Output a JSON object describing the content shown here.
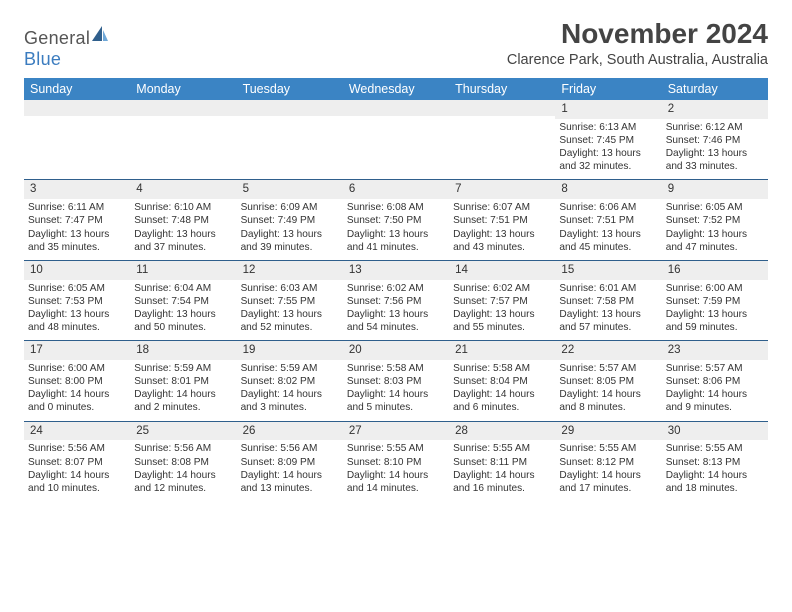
{
  "logo": {
    "word1": "General",
    "word2": "Blue"
  },
  "title": "November 2024",
  "subtitle": "Clarence Park, South Australia, Australia",
  "colors": {
    "header_bg": "#3b84c4",
    "header_text": "#ffffff",
    "daynum_bg": "#eeeeee",
    "rule": "#2f5f8c",
    "text": "#333333",
    "page_bg": "#ffffff"
  },
  "fonts": {
    "title_size_pt": 21,
    "subtitle_size_pt": 11,
    "header_size_pt": 9.5,
    "cell_size_pt": 7.6
  },
  "day_names": [
    "Sunday",
    "Monday",
    "Tuesday",
    "Wednesday",
    "Thursday",
    "Friday",
    "Saturday"
  ],
  "weeks": [
    [
      {
        "n": "",
        "sr": "",
        "ss": "",
        "dl1": "",
        "dl2": ""
      },
      {
        "n": "",
        "sr": "",
        "ss": "",
        "dl1": "",
        "dl2": ""
      },
      {
        "n": "",
        "sr": "",
        "ss": "",
        "dl1": "",
        "dl2": ""
      },
      {
        "n": "",
        "sr": "",
        "ss": "",
        "dl1": "",
        "dl2": ""
      },
      {
        "n": "",
        "sr": "",
        "ss": "",
        "dl1": "",
        "dl2": ""
      },
      {
        "n": "1",
        "sr": "Sunrise: 6:13 AM",
        "ss": "Sunset: 7:45 PM",
        "dl1": "Daylight: 13 hours",
        "dl2": "and 32 minutes."
      },
      {
        "n": "2",
        "sr": "Sunrise: 6:12 AM",
        "ss": "Sunset: 7:46 PM",
        "dl1": "Daylight: 13 hours",
        "dl2": "and 33 minutes."
      }
    ],
    [
      {
        "n": "3",
        "sr": "Sunrise: 6:11 AM",
        "ss": "Sunset: 7:47 PM",
        "dl1": "Daylight: 13 hours",
        "dl2": "and 35 minutes."
      },
      {
        "n": "4",
        "sr": "Sunrise: 6:10 AM",
        "ss": "Sunset: 7:48 PM",
        "dl1": "Daylight: 13 hours",
        "dl2": "and 37 minutes."
      },
      {
        "n": "5",
        "sr": "Sunrise: 6:09 AM",
        "ss": "Sunset: 7:49 PM",
        "dl1": "Daylight: 13 hours",
        "dl2": "and 39 minutes."
      },
      {
        "n": "6",
        "sr": "Sunrise: 6:08 AM",
        "ss": "Sunset: 7:50 PM",
        "dl1": "Daylight: 13 hours",
        "dl2": "and 41 minutes."
      },
      {
        "n": "7",
        "sr": "Sunrise: 6:07 AM",
        "ss": "Sunset: 7:51 PM",
        "dl1": "Daylight: 13 hours",
        "dl2": "and 43 minutes."
      },
      {
        "n": "8",
        "sr": "Sunrise: 6:06 AM",
        "ss": "Sunset: 7:51 PM",
        "dl1": "Daylight: 13 hours",
        "dl2": "and 45 minutes."
      },
      {
        "n": "9",
        "sr": "Sunrise: 6:05 AM",
        "ss": "Sunset: 7:52 PM",
        "dl1": "Daylight: 13 hours",
        "dl2": "and 47 minutes."
      }
    ],
    [
      {
        "n": "10",
        "sr": "Sunrise: 6:05 AM",
        "ss": "Sunset: 7:53 PM",
        "dl1": "Daylight: 13 hours",
        "dl2": "and 48 minutes."
      },
      {
        "n": "11",
        "sr": "Sunrise: 6:04 AM",
        "ss": "Sunset: 7:54 PM",
        "dl1": "Daylight: 13 hours",
        "dl2": "and 50 minutes."
      },
      {
        "n": "12",
        "sr": "Sunrise: 6:03 AM",
        "ss": "Sunset: 7:55 PM",
        "dl1": "Daylight: 13 hours",
        "dl2": "and 52 minutes."
      },
      {
        "n": "13",
        "sr": "Sunrise: 6:02 AM",
        "ss": "Sunset: 7:56 PM",
        "dl1": "Daylight: 13 hours",
        "dl2": "and 54 minutes."
      },
      {
        "n": "14",
        "sr": "Sunrise: 6:02 AM",
        "ss": "Sunset: 7:57 PM",
        "dl1": "Daylight: 13 hours",
        "dl2": "and 55 minutes."
      },
      {
        "n": "15",
        "sr": "Sunrise: 6:01 AM",
        "ss": "Sunset: 7:58 PM",
        "dl1": "Daylight: 13 hours",
        "dl2": "and 57 minutes."
      },
      {
        "n": "16",
        "sr": "Sunrise: 6:00 AM",
        "ss": "Sunset: 7:59 PM",
        "dl1": "Daylight: 13 hours",
        "dl2": "and 59 minutes."
      }
    ],
    [
      {
        "n": "17",
        "sr": "Sunrise: 6:00 AM",
        "ss": "Sunset: 8:00 PM",
        "dl1": "Daylight: 14 hours",
        "dl2": "and 0 minutes."
      },
      {
        "n": "18",
        "sr": "Sunrise: 5:59 AM",
        "ss": "Sunset: 8:01 PM",
        "dl1": "Daylight: 14 hours",
        "dl2": "and 2 minutes."
      },
      {
        "n": "19",
        "sr": "Sunrise: 5:59 AM",
        "ss": "Sunset: 8:02 PM",
        "dl1": "Daylight: 14 hours",
        "dl2": "and 3 minutes."
      },
      {
        "n": "20",
        "sr": "Sunrise: 5:58 AM",
        "ss": "Sunset: 8:03 PM",
        "dl1": "Daylight: 14 hours",
        "dl2": "and 5 minutes."
      },
      {
        "n": "21",
        "sr": "Sunrise: 5:58 AM",
        "ss": "Sunset: 8:04 PM",
        "dl1": "Daylight: 14 hours",
        "dl2": "and 6 minutes."
      },
      {
        "n": "22",
        "sr": "Sunrise: 5:57 AM",
        "ss": "Sunset: 8:05 PM",
        "dl1": "Daylight: 14 hours",
        "dl2": "and 8 minutes."
      },
      {
        "n": "23",
        "sr": "Sunrise: 5:57 AM",
        "ss": "Sunset: 8:06 PM",
        "dl1": "Daylight: 14 hours",
        "dl2": "and 9 minutes."
      }
    ],
    [
      {
        "n": "24",
        "sr": "Sunrise: 5:56 AM",
        "ss": "Sunset: 8:07 PM",
        "dl1": "Daylight: 14 hours",
        "dl2": "and 10 minutes."
      },
      {
        "n": "25",
        "sr": "Sunrise: 5:56 AM",
        "ss": "Sunset: 8:08 PM",
        "dl1": "Daylight: 14 hours",
        "dl2": "and 12 minutes."
      },
      {
        "n": "26",
        "sr": "Sunrise: 5:56 AM",
        "ss": "Sunset: 8:09 PM",
        "dl1": "Daylight: 14 hours",
        "dl2": "and 13 minutes."
      },
      {
        "n": "27",
        "sr": "Sunrise: 5:55 AM",
        "ss": "Sunset: 8:10 PM",
        "dl1": "Daylight: 14 hours",
        "dl2": "and 14 minutes."
      },
      {
        "n": "28",
        "sr": "Sunrise: 5:55 AM",
        "ss": "Sunset: 8:11 PM",
        "dl1": "Daylight: 14 hours",
        "dl2": "and 16 minutes."
      },
      {
        "n": "29",
        "sr": "Sunrise: 5:55 AM",
        "ss": "Sunset: 8:12 PM",
        "dl1": "Daylight: 14 hours",
        "dl2": "and 17 minutes."
      },
      {
        "n": "30",
        "sr": "Sunrise: 5:55 AM",
        "ss": "Sunset: 8:13 PM",
        "dl1": "Daylight: 14 hours",
        "dl2": "and 18 minutes."
      }
    ]
  ]
}
